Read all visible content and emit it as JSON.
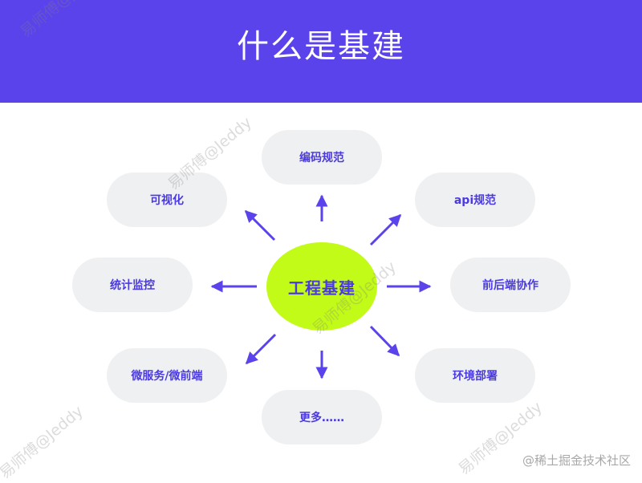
{
  "header": {
    "title": "什么是基建"
  },
  "center_node": {
    "label": "工程基建"
  },
  "nodes": {
    "coding_standards": "编码规范",
    "api_standards": "api规范",
    "frontend_backend": "前后端协作",
    "environment_deploy": "环境部署",
    "more": "更多……",
    "microservices": "微服务/微前端",
    "monitoring": "统计监控",
    "visualization": "可视化"
  },
  "watermarks": {
    "author": "易师傅@Jeddy",
    "site": "@稀土掘金技术社区"
  },
  "colors": {
    "header_bg": "#5b43ec",
    "center_fill": "#c2fb17",
    "node_fill": "#eff0f2",
    "accent_text": "#4b3ae0",
    "arrow": "#5b43ec"
  }
}
